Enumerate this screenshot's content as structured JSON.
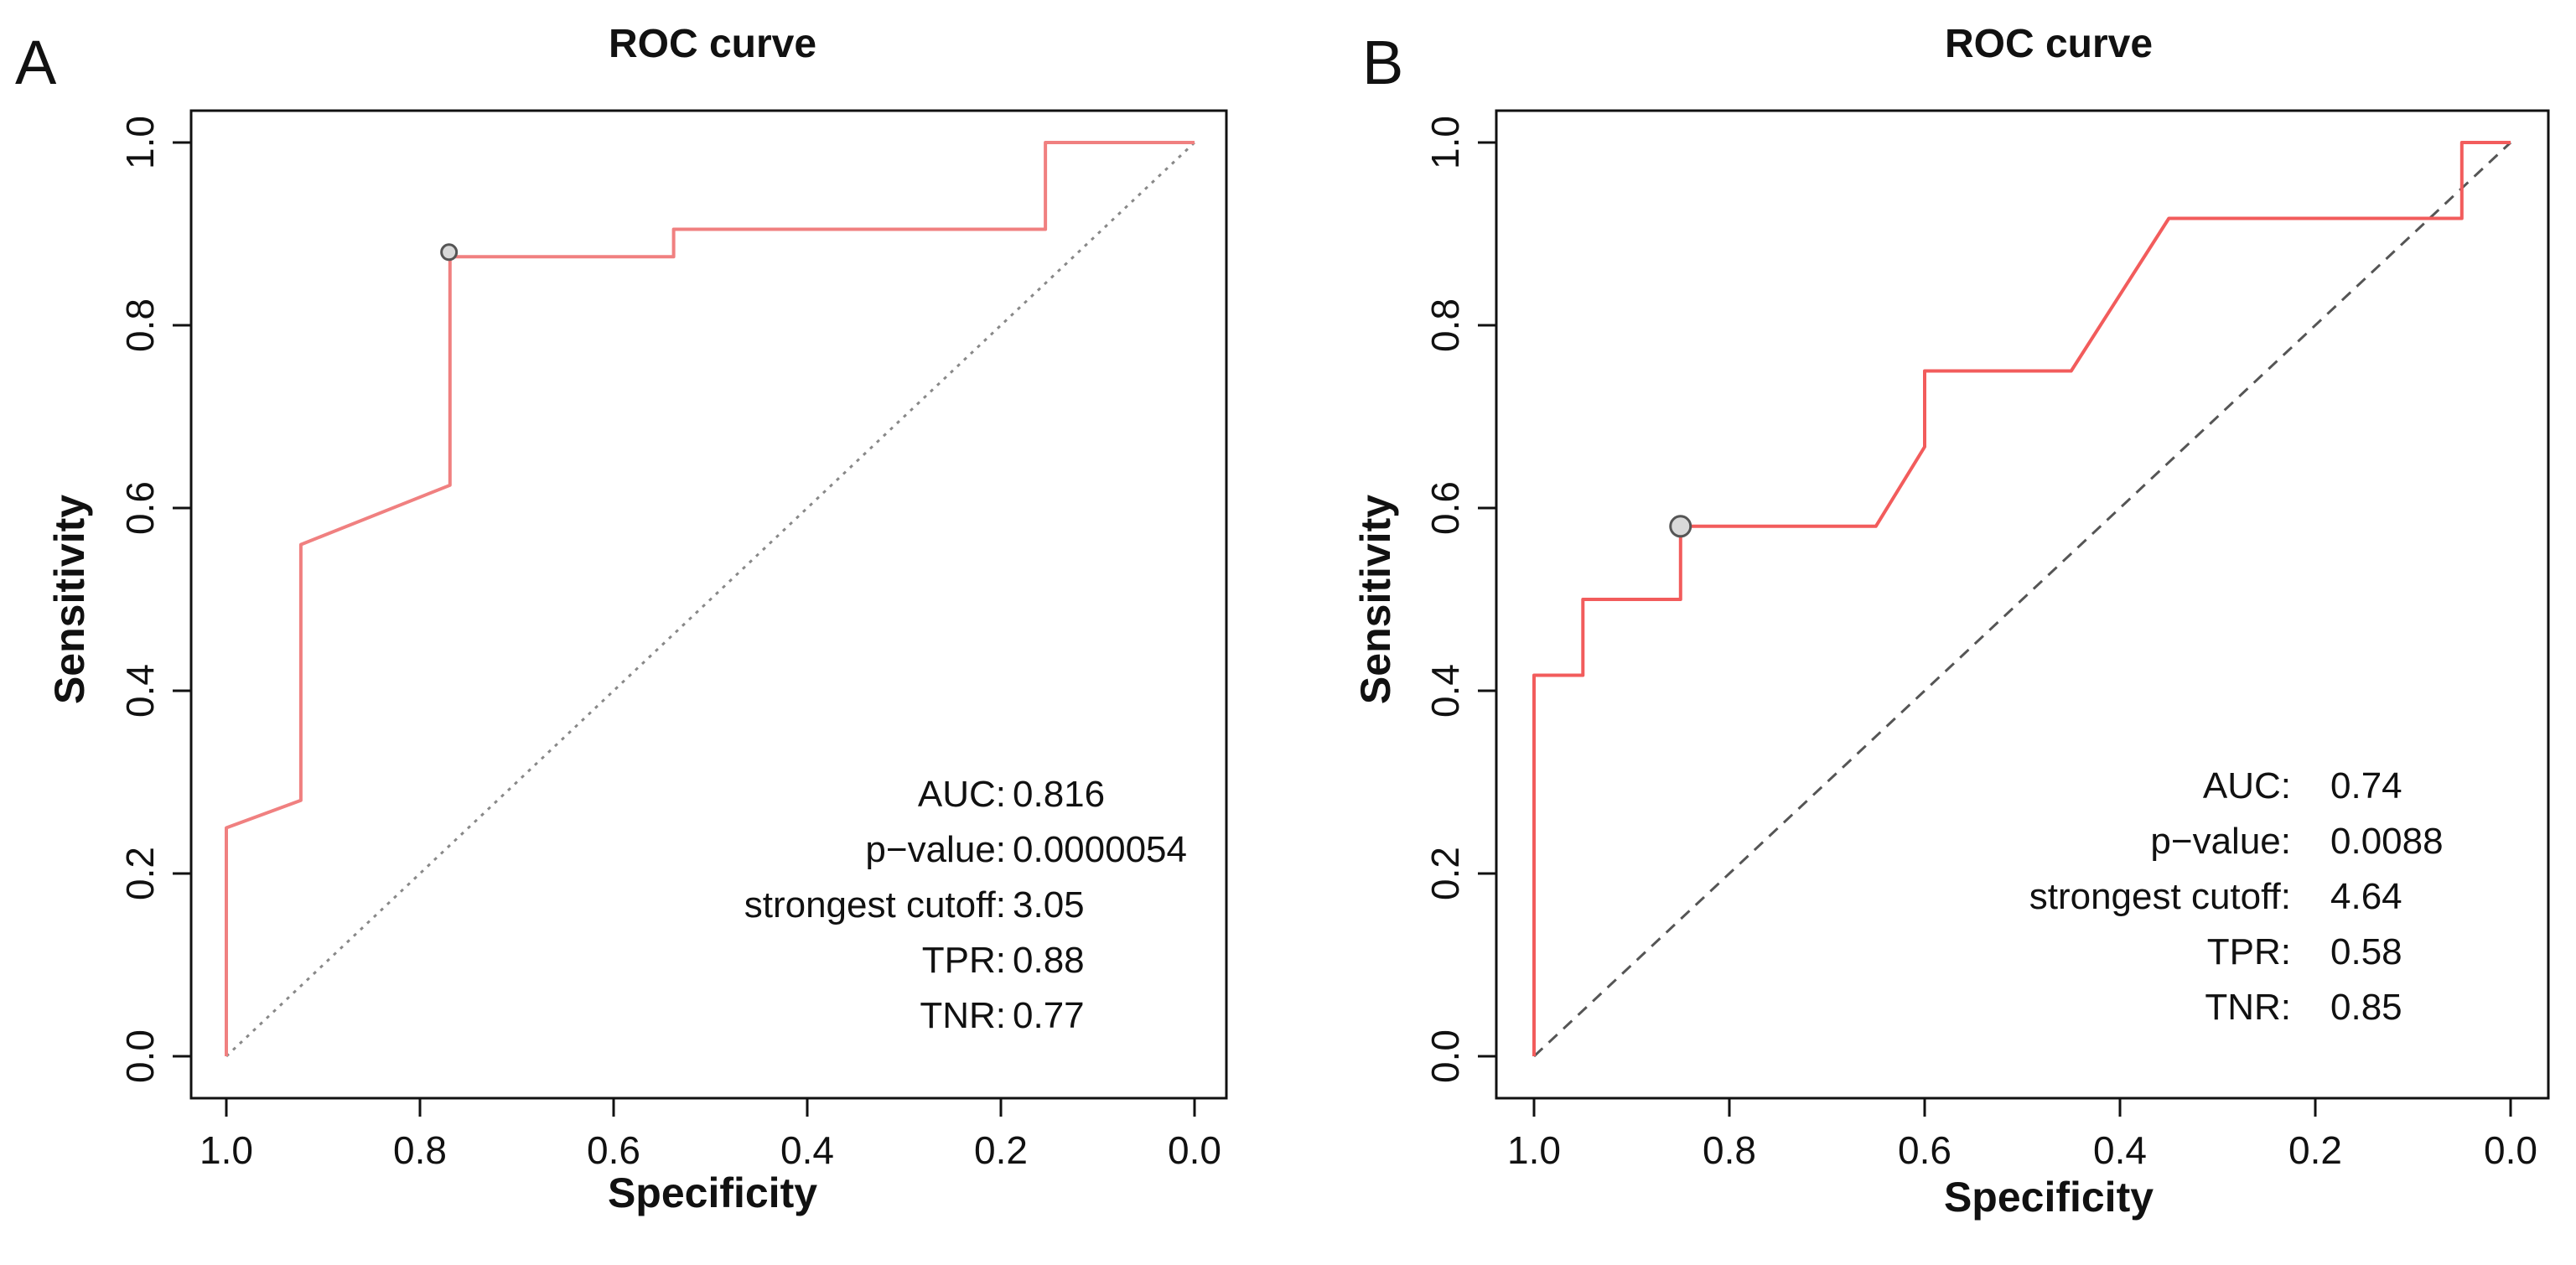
{
  "chart_data": [
    {
      "type": "line",
      "panel_label": "A",
      "title": "ROC curve",
      "xlabel": "Specificity",
      "ylabel": "Sensitivity",
      "xlim": [
        1.0,
        0.0
      ],
      "ylim": [
        0.0,
        1.0
      ],
      "x_ticks": [
        "1.0",
        "0.8",
        "0.6",
        "0.4",
        "0.2",
        "0.0"
      ],
      "y_ticks": [
        "0.0",
        "0.2",
        "0.4",
        "0.6",
        "0.8",
        "1.0"
      ],
      "grid": false,
      "curve_color": "#f08080",
      "diagonal_color": "#888888",
      "diagonal_style": "dotted",
      "series": [
        {
          "name": "ROC",
          "specificity": [
            1.0,
            1.0,
            0.923,
            0.923,
            0.769,
            0.769,
            0.538,
            0.538,
            0.154,
            0.154,
            0.0
          ],
          "sensitivity": [
            0.0,
            0.25,
            0.28,
            0.56,
            0.625,
            0.875,
            0.875,
            0.905,
            0.905,
            1.0,
            1.0
          ]
        }
      ],
      "cutoff_point": {
        "specificity": 0.77,
        "sensitivity": 0.88
      },
      "stats": [
        {
          "label": "AUC:",
          "value": "0.816"
        },
        {
          "label": "p−value:",
          "value": "0.0000054"
        },
        {
          "label": "strongest cutoff:",
          "value": "3.05"
        },
        {
          "label": "TPR:",
          "value": "0.88"
        },
        {
          "label": "TNR:",
          "value": "0.77"
        }
      ]
    },
    {
      "type": "line",
      "panel_label": "B",
      "title": "ROC curve",
      "xlabel": "Specificity",
      "ylabel": "Sensitivity",
      "xlim": [
        1.0,
        0.0
      ],
      "ylim": [
        0.0,
        1.0
      ],
      "x_ticks": [
        "1.0",
        "0.8",
        "0.6",
        "0.4",
        "0.2",
        "0.0"
      ],
      "y_ticks": [
        "0.0",
        "0.2",
        "0.4",
        "0.6",
        "0.8",
        "1.0"
      ],
      "grid": false,
      "curve_color": "#f25c5c",
      "diagonal_color": "#555555",
      "diagonal_style": "dashed",
      "series": [
        {
          "name": "ROC",
          "specificity": [
            1.0,
            1.0,
            0.95,
            0.95,
            0.85,
            0.85,
            0.65,
            0.6,
            0.6,
            0.45,
            0.35,
            0.05,
            0.05,
            0.0
          ],
          "sensitivity": [
            0.0,
            0.417,
            0.417,
            0.5,
            0.5,
            0.58,
            0.58,
            0.667,
            0.75,
            0.75,
            0.917,
            0.917,
            1.0,
            1.0
          ]
        }
      ],
      "cutoff_point": {
        "specificity": 0.85,
        "sensitivity": 0.58
      },
      "stats": [
        {
          "label": "AUC:",
          "value": "0.74"
        },
        {
          "label": "p−value:",
          "value": "0.0088"
        },
        {
          "label": "strongest cutoff:",
          "value": "4.64"
        },
        {
          "label": "TPR:",
          "value": "0.58"
        },
        {
          "label": "TNR:",
          "value": "0.85"
        }
      ]
    }
  ]
}
